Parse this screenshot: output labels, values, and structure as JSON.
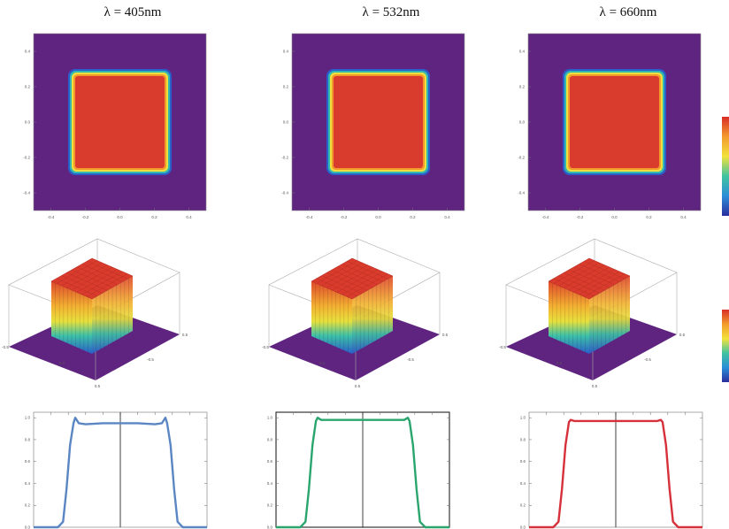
{
  "figure": {
    "titles": [
      "λ = 405nm",
      "λ = 532nm",
      "λ = 660nm"
    ]
  },
  "colors": {
    "background": "#5e2480",
    "flat_top": "#d93b2c",
    "profile_405": "#5b86c4",
    "profile_532": "#2aa56e",
    "profile_660": "#d6303a",
    "center_line": "#111111"
  },
  "colorbar": {
    "stops": [
      "#2a2e9e",
      "#2a8ed8",
      "#3fc3a0",
      "#f2e23c",
      "#f39a2c",
      "#d92d26"
    ]
  },
  "chart_data": [
    {
      "type": "heatmap",
      "title": "λ = 405nm",
      "description_visible": "2D intensity map of a flat-top square beam",
      "xlim": [
        -0.5,
        0.5
      ],
      "ylim": [
        -0.5,
        0.5
      ],
      "xticks": [
        "-0.4",
        "-0.2",
        "0.0",
        "0.2",
        "0.4"
      ],
      "yticks": [
        "0.4",
        "0.2",
        "0.0",
        "-0.2",
        "-0.4"
      ],
      "square_extent": [
        -0.3,
        0.3
      ],
      "colorbar": false
    },
    {
      "type": "heatmap",
      "title": "λ = 532nm",
      "xlim": [
        -0.5,
        0.5
      ],
      "ylim": [
        -0.5,
        0.5
      ],
      "xticks": [
        "-0.4",
        "-0.2",
        "0.0",
        "0.2",
        "0.4"
      ],
      "yticks": [
        "0.4",
        "0.2",
        "0.0",
        "-0.2",
        "-0.4"
      ],
      "square_extent": [
        -0.3,
        0.3
      ],
      "colorbar": false
    },
    {
      "type": "heatmap",
      "title": "λ = 660nm",
      "xlim": [
        -0.5,
        0.5
      ],
      "ylim": [
        -0.5,
        0.5
      ],
      "xticks": [
        "-0.4",
        "-0.2",
        "0.0",
        "0.2",
        "0.4"
      ],
      "yticks": [
        "0.4",
        "0.2",
        "0.0",
        "-0.2",
        "-0.4"
      ],
      "square_extent": [
        -0.3,
        0.3
      ],
      "colorbar": true
    },
    {
      "type": "area",
      "subtype": "3d-surface",
      "axis_ticks": [
        "-0.5",
        "0.0",
        "0.5",
        "-0.5",
        "0.5"
      ],
      "plateau_value": 1.0
    },
    {
      "type": "area",
      "subtype": "3d-surface",
      "axis_ticks": [
        "-0.5",
        "0.0",
        "0.5",
        "-0.5",
        "0.5"
      ],
      "plateau_value": 1.0
    },
    {
      "type": "area",
      "subtype": "3d-surface",
      "axis_ticks": [
        "-0.5",
        "0.0",
        "0.5",
        "-0.5",
        "0.5"
      ],
      "plateau_value": 1.0,
      "colorbar": true
    },
    {
      "type": "line",
      "series": [
        {
          "x": [
            -0.5,
            -0.36,
            -0.33,
            -0.31,
            -0.29,
            -0.27,
            -0.26,
            -0.24,
            -0.2,
            -0.1,
            0.0,
            0.1,
            0.2,
            0.24,
            0.26,
            0.27,
            0.29,
            0.31,
            0.33,
            0.36,
            0.5
          ],
          "y": [
            0.0,
            0.0,
            0.05,
            0.35,
            0.75,
            0.95,
            1.0,
            0.95,
            0.94,
            0.95,
            0.95,
            0.95,
            0.94,
            0.95,
            1.0,
            0.95,
            0.75,
            0.35,
            0.05,
            0.0,
            0.0
          ]
        }
      ],
      "xlim": [
        -0.5,
        0.5
      ],
      "ylim": [
        0,
        1.05
      ],
      "yticks": [
        "1.0",
        "0.8",
        "0.6",
        "0.4",
        "0.2",
        "0.0"
      ],
      "center_line_x": 0
    },
    {
      "type": "line",
      "series": [
        {
          "x": [
            -0.5,
            -0.36,
            -0.33,
            -0.31,
            -0.29,
            -0.27,
            -0.26,
            -0.24,
            -0.2,
            -0.1,
            0.0,
            0.1,
            0.2,
            0.24,
            0.26,
            0.27,
            0.29,
            0.31,
            0.33,
            0.36,
            0.5
          ],
          "y": [
            0.0,
            0.0,
            0.05,
            0.35,
            0.75,
            0.97,
            1.0,
            0.98,
            0.98,
            0.98,
            0.98,
            0.98,
            0.98,
            0.98,
            1.0,
            0.97,
            0.75,
            0.35,
            0.05,
            0.0,
            0.0
          ]
        }
      ],
      "xlim": [
        -0.5,
        0.5
      ],
      "ylim": [
        0,
        1.05
      ],
      "yticks": [
        "1.0",
        "0.8",
        "0.6",
        "0.4",
        "0.2",
        "0.0"
      ],
      "center_line_x": 0
    },
    {
      "type": "line",
      "series": [
        {
          "x": [
            -0.5,
            -0.36,
            -0.33,
            -0.31,
            -0.29,
            -0.27,
            -0.26,
            -0.24,
            -0.2,
            -0.1,
            0.0,
            0.1,
            0.2,
            0.24,
            0.26,
            0.27,
            0.29,
            0.31,
            0.33,
            0.36,
            0.5
          ],
          "y": [
            0.0,
            0.0,
            0.05,
            0.35,
            0.75,
            0.96,
            0.98,
            0.97,
            0.97,
            0.97,
            0.97,
            0.97,
            0.97,
            0.97,
            0.98,
            0.96,
            0.75,
            0.35,
            0.05,
            0.0,
            0.0
          ]
        }
      ],
      "xlim": [
        -0.5,
        0.5
      ],
      "ylim": [
        0,
        1.05
      ],
      "yticks": [
        "1.0",
        "0.8",
        "0.6",
        "0.4",
        "0.2",
        "0.0"
      ],
      "center_line_x": 0
    }
  ]
}
